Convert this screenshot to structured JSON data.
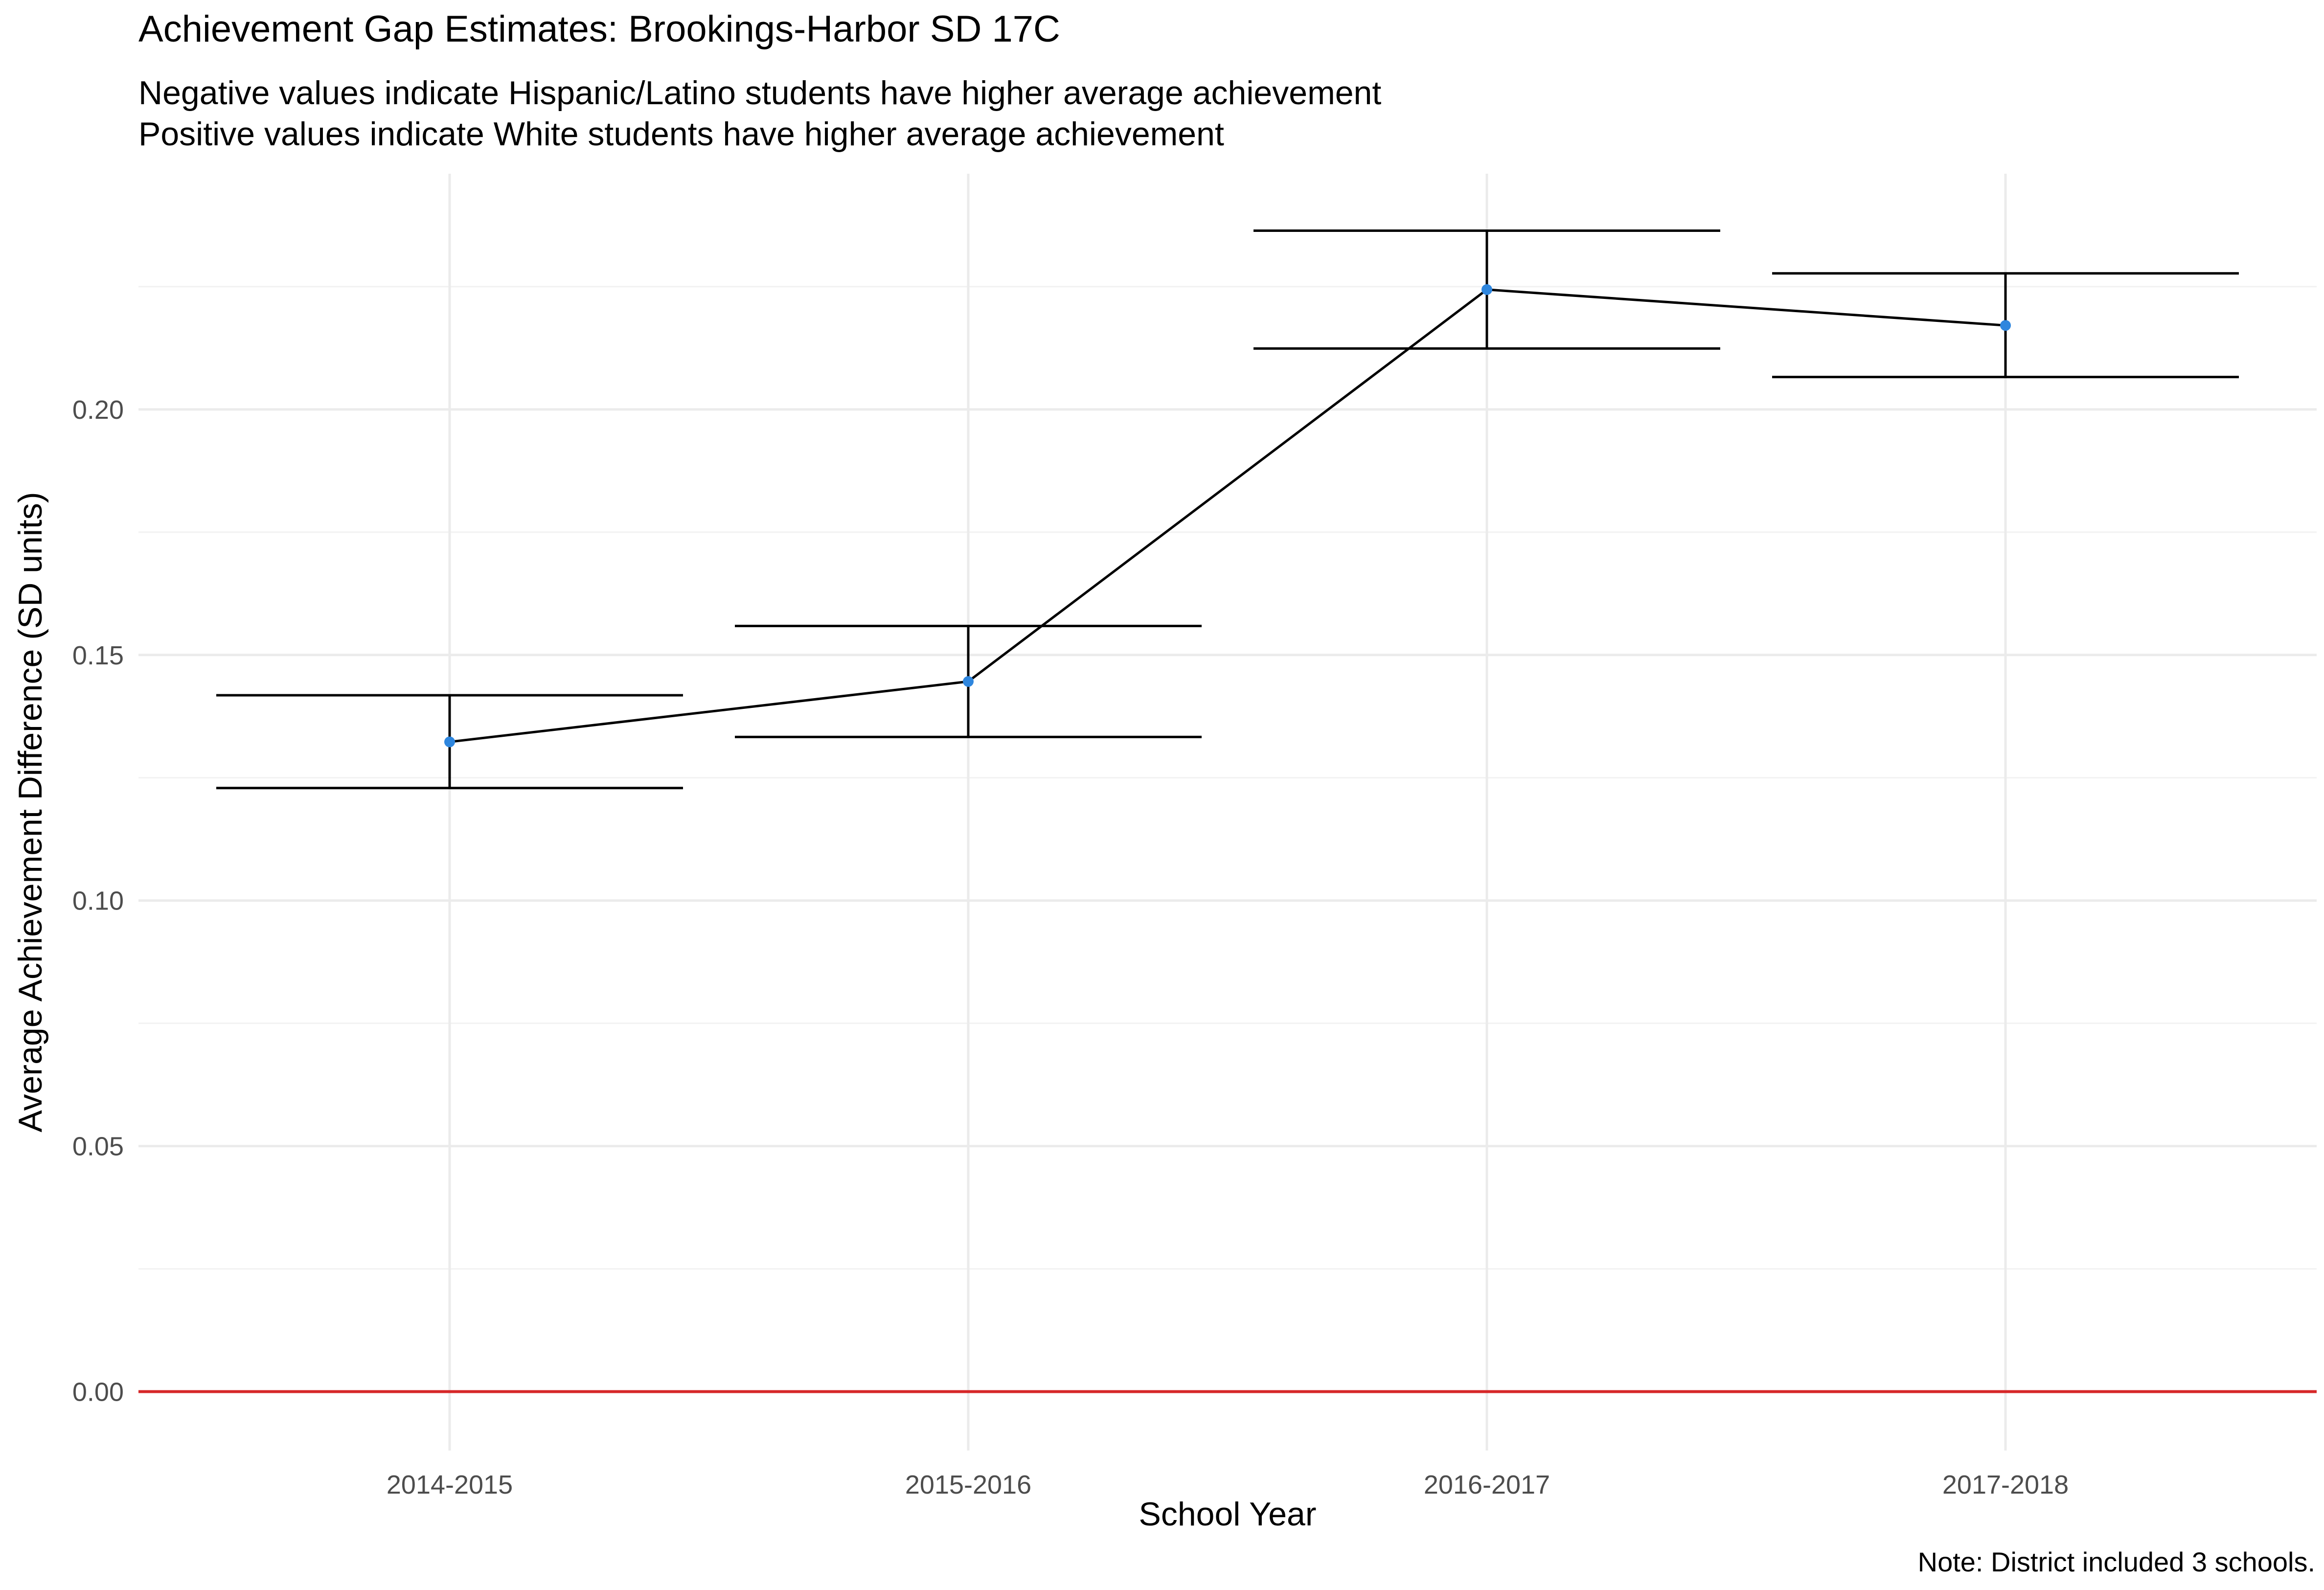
{
  "chart_data": {
    "type": "line",
    "title": "Achievement Gap Estimates: Brookings-Harbor SD 17C",
    "subtitle": [
      "Negative values indicate Hispanic/Latino students have higher average achievement",
      "Positive values indicate White students have higher average achievement"
    ],
    "caption": "Note: District included 3 schools.",
    "xlabel": "School Year",
    "ylabel": "Average Achievement Difference (SD units)",
    "categories": [
      "2014-2015",
      "2015-2016",
      "2016-2017",
      "2017-2018"
    ],
    "series": [
      {
        "values": [
          0.1323,
          0.1446,
          0.2244,
          0.2171
        ],
        "lower": [
          0.1229,
          0.1333,
          0.2124,
          0.2066
        ],
        "upper": [
          0.1418,
          0.1559,
          0.2364,
          0.2277
        ]
      }
    ],
    "yticks": [
      0.0,
      0.05,
      0.1,
      0.15,
      0.2
    ],
    "ytick_labels": [
      "0.00",
      "0.05",
      "0.10",
      "0.15",
      "0.20"
    ],
    "ylim": [
      -0.012,
      0.248
    ],
    "reference_line": {
      "y": 0,
      "color": "#d62728"
    },
    "point_color": "#2e86de",
    "line_color": "#000000",
    "grid": true
  }
}
